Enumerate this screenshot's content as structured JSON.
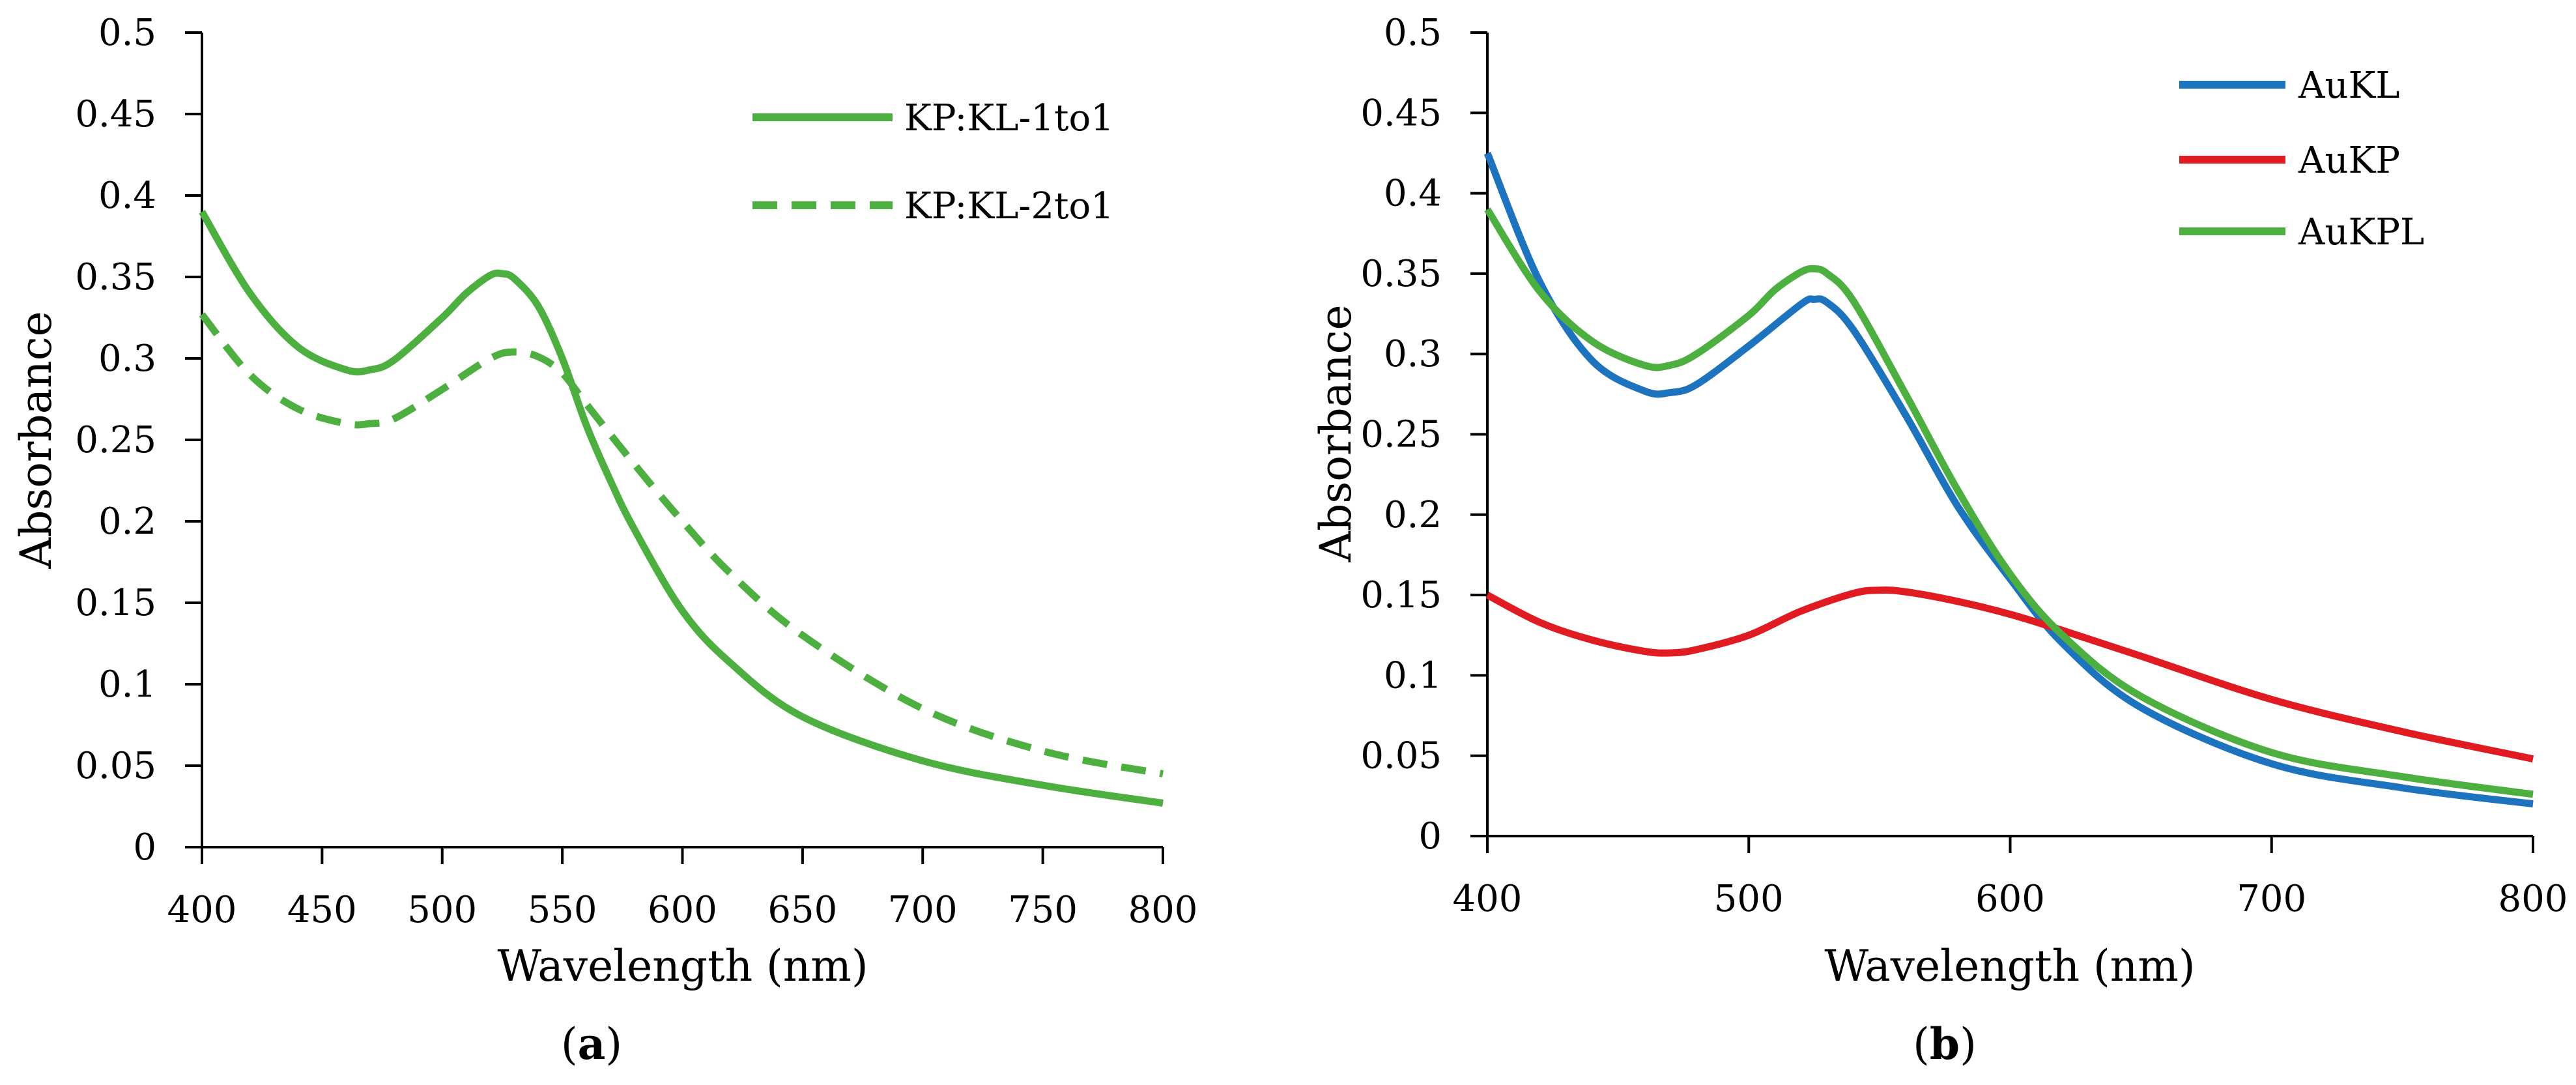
{
  "chart_data": [
    {
      "type": "line",
      "panel_label": [
        "(",
        "a",
        ")"
      ],
      "xlabel": "Wavelength (nm)",
      "ylabel": "Absorbance",
      "xlim": [
        400,
        800
      ],
      "ylim": [
        0,
        0.5
      ],
      "xticks": [
        400,
        450,
        500,
        550,
        600,
        650,
        700,
        750,
        800
      ],
      "yticks": [
        0,
        0.05,
        0.1,
        0.15,
        0.2,
        0.25,
        0.3,
        0.35,
        0.4,
        0.45,
        0.5
      ],
      "legend_position": "top-right",
      "grid": false,
      "series": [
        {
          "name": "KP:KL-1to1",
          "color": "#4caf3f",
          "dash": "solid",
          "x": [
            400,
            420,
            440,
            460,
            470,
            480,
            500,
            510,
            520,
            525,
            530,
            540,
            550,
            560,
            570,
            580,
            600,
            620,
            650,
            700,
            750,
            800
          ],
          "y": [
            0.39,
            0.34,
            0.307,
            0.293,
            0.293,
            0.299,
            0.325,
            0.34,
            0.351,
            0.352,
            0.349,
            0.332,
            0.3,
            0.259,
            0.225,
            0.195,
            0.145,
            0.113,
            0.08,
            0.053,
            0.038,
            0.027
          ]
        },
        {
          "name": "KP:KL-2to1",
          "color": "#4caf3f",
          "dash": "dashed",
          "x": [
            400,
            420,
            440,
            460,
            470,
            480,
            500,
            520,
            530,
            540,
            550,
            560,
            580,
            600,
            620,
            650,
            700,
            750,
            800
          ],
          "y": [
            0.327,
            0.29,
            0.269,
            0.26,
            0.26,
            0.263,
            0.281,
            0.3,
            0.304,
            0.301,
            0.291,
            0.272,
            0.235,
            0.2,
            0.168,
            0.13,
            0.085,
            0.059,
            0.045
          ]
        }
      ]
    },
    {
      "type": "line",
      "panel_label": [
        "(",
        "b",
        ")"
      ],
      "xlabel": "Wavelength (nm)",
      "ylabel": "Absorbance",
      "xlim": [
        400,
        800
      ],
      "ylim": [
        0,
        0.5
      ],
      "xticks": [
        400,
        500,
        600,
        700,
        800
      ],
      "yticks": [
        0,
        0.05,
        0.1,
        0.15,
        0.2,
        0.25,
        0.3,
        0.35,
        0.4,
        0.45,
        0.5
      ],
      "legend_position": "top-right",
      "grid": false,
      "series": [
        {
          "name": "AuKL",
          "color": "#1e73be",
          "dash": "solid",
          "x": [
            400,
            420,
            440,
            460,
            470,
            480,
            500,
            520,
            525,
            530,
            540,
            560,
            580,
            600,
            620,
            650,
            700,
            750,
            800
          ],
          "y": [
            0.425,
            0.345,
            0.296,
            0.277,
            0.276,
            0.281,
            0.305,
            0.331,
            0.334,
            0.332,
            0.315,
            0.262,
            0.205,
            0.16,
            0.12,
            0.08,
            0.045,
            0.03,
            0.02
          ]
        },
        {
          "name": "AuKP",
          "color": "#e01b22",
          "dash": "solid",
          "x": [
            400,
            420,
            440,
            460,
            470,
            480,
            500,
            520,
            540,
            550,
            560,
            580,
            600,
            620,
            650,
            700,
            750,
            800
          ],
          "y": [
            0.15,
            0.133,
            0.122,
            0.115,
            0.114,
            0.116,
            0.125,
            0.14,
            0.151,
            0.153,
            0.152,
            0.146,
            0.138,
            0.128,
            0.112,
            0.085,
            0.065,
            0.048
          ]
        },
        {
          "name": "AuKPL",
          "color": "#4caf3f",
          "dash": "solid",
          "x": [
            400,
            420,
            440,
            460,
            470,
            480,
            500,
            510,
            520,
            525,
            530,
            540,
            560,
            580,
            600,
            620,
            650,
            700,
            750,
            800
          ],
          "y": [
            0.39,
            0.339,
            0.308,
            0.293,
            0.293,
            0.3,
            0.324,
            0.34,
            0.351,
            0.353,
            0.35,
            0.333,
            0.275,
            0.215,
            0.163,
            0.125,
            0.087,
            0.052,
            0.037,
            0.026
          ]
        }
      ]
    }
  ]
}
